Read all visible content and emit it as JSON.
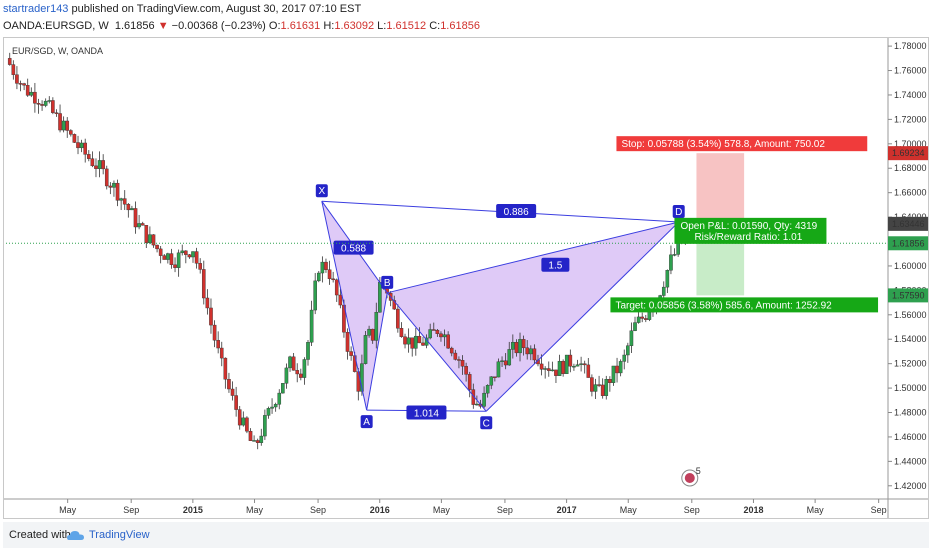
{
  "header": {
    "author": "startrader143",
    "published": "published on TradingView.com, August 30, 2017 07:10 EST",
    "symbol": "OANDA:EURSGD, W",
    "last": "1.61856",
    "arrow": "▼",
    "change": "−0.00368 (−0.23%)",
    "o_label": "O:",
    "o_val": "1.61631",
    "h_label": "H:",
    "h_val": "1.63092",
    "l_label": "L:",
    "l_val": "1.61512",
    "c_label": "C:",
    "c_val": "1.61856"
  },
  "footer": {
    "created_with": "Created with",
    "brand": "TradingView"
  },
  "colors": {
    "up": "#2ea04f",
    "down": "#d0312d",
    "pattern_line": "#3b3ee0",
    "pattern_fill": "#c9a6f2",
    "stop_zone": "#f7c3c3",
    "target_zone": "#c8ecc8",
    "stop_label": "#f03b3b",
    "target_label": "#16a816",
    "point_label": "#2424c8"
  },
  "chart_data": {
    "type": "candlestick",
    "title": "EUR/SGD, W, OANDA",
    "ylim": [
      1.41,
      1.785
    ],
    "y_ticks": [
      "1.78000",
      "1.76000",
      "1.74000",
      "1.72000",
      "1.70000",
      "1.68000",
      "1.66000",
      "1.64000",
      "1.62000",
      "1.60000",
      "1.58000",
      "1.56000",
      "1.54000",
      "1.52000",
      "1.50000",
      "1.48000",
      "1.46000",
      "1.44000",
      "1.42000"
    ],
    "x_ticks": [
      {
        "label": "May",
        "t": 2014.33,
        "bold": false
      },
      {
        "label": "Sep",
        "t": 2014.67,
        "bold": false
      },
      {
        "label": "2015",
        "t": 2015.0,
        "bold": true
      },
      {
        "label": "May",
        "t": 2015.33,
        "bold": false
      },
      {
        "label": "Sep",
        "t": 2015.67,
        "bold": false
      },
      {
        "label": "2016",
        "t": 2016.0,
        "bold": true
      },
      {
        "label": "May",
        "t": 2016.33,
        "bold": false
      },
      {
        "label": "Sep",
        "t": 2016.67,
        "bold": false
      },
      {
        "label": "2017",
        "t": 2017.0,
        "bold": true
      },
      {
        "label": "May",
        "t": 2017.33,
        "bold": false
      },
      {
        "label": "Sep",
        "t": 2017.67,
        "bold": false
      },
      {
        "label": "2018",
        "t": 2018.0,
        "bold": true
      },
      {
        "label": "May",
        "t": 2018.33,
        "bold": false
      },
      {
        "label": "Sep",
        "t": 2018.67,
        "bold": false
      }
    ],
    "xlim": [
      2014.0,
      2018.72
    ],
    "price_path": [
      [
        2014.02,
        1.765
      ],
      [
        2014.1,
        1.745
      ],
      [
        2014.2,
        1.735
      ],
      [
        2014.3,
        1.715
      ],
      [
        2014.4,
        1.695
      ],
      [
        2014.5,
        1.68
      ],
      [
        2014.6,
        1.66
      ],
      [
        2014.7,
        1.635
      ],
      [
        2014.8,
        1.615
      ],
      [
        2014.9,
        1.605
      ],
      [
        2015.0,
        1.615
      ],
      [
        2015.05,
        1.585
      ],
      [
        2015.1,
        1.55
      ],
      [
        2015.15,
        1.52
      ],
      [
        2015.2,
        1.495
      ],
      [
        2015.28,
        1.465
      ],
      [
        2015.33,
        1.45
      ],
      [
        2015.38,
        1.47
      ],
      [
        2015.45,
        1.495
      ],
      [
        2015.52,
        1.52
      ],
      [
        2015.58,
        1.515
      ],
      [
        2015.62,
        1.54
      ],
      [
        2015.67,
        1.6
      ],
      [
        2015.72,
        1.6
      ],
      [
        2015.77,
        1.575
      ],
      [
        2015.82,
        1.54
      ],
      [
        2015.86,
        1.515
      ],
      [
        2015.89,
        1.5
      ],
      [
        2015.93,
        1.545
      ],
      [
        2015.96,
        1.54
      ],
      [
        2016.0,
        1.585
      ],
      [
        2016.03,
        1.585
      ],
      [
        2016.07,
        1.565
      ],
      [
        2016.1,
        1.555
      ],
      [
        2016.14,
        1.54
      ],
      [
        2016.2,
        1.535
      ],
      [
        2016.26,
        1.54
      ],
      [
        2016.32,
        1.55
      ],
      [
        2016.38,
        1.535
      ],
      [
        2016.44,
        1.52
      ],
      [
        2016.5,
        1.49
      ],
      [
        2016.54,
        1.485
      ],
      [
        2016.58,
        1.5
      ],
      [
        2016.64,
        1.52
      ],
      [
        2016.7,
        1.53
      ],
      [
        2016.76,
        1.535
      ],
      [
        2016.82,
        1.53
      ],
      [
        2016.88,
        1.52
      ],
      [
        2016.94,
        1.515
      ],
      [
        2017.0,
        1.52
      ],
      [
        2017.06,
        1.525
      ],
      [
        2017.12,
        1.505
      ],
      [
        2017.18,
        1.495
      ],
      [
        2017.24,
        1.51
      ],
      [
        2017.3,
        1.52
      ],
      [
        2017.36,
        1.55
      ],
      [
        2017.42,
        1.56
      ],
      [
        2017.5,
        1.58
      ],
      [
        2017.56,
        1.605
      ],
      [
        2017.62,
        1.62
      ]
    ],
    "harmonic_pattern": {
      "points": [
        {
          "label": "X",
          "t": 2015.69,
          "price": 1.653
        },
        {
          "label": "A",
          "t": 2015.93,
          "price": 1.482
        },
        {
          "label": "B",
          "t": 2016.04,
          "price": 1.578
        },
        {
          "label": "C",
          "t": 2016.57,
          "price": 1.481
        },
        {
          "label": "D",
          "t": 2017.6,
          "price": 1.636
        }
      ],
      "ratios": [
        {
          "label": "0.588",
          "t": 2015.86,
          "price": 1.615
        },
        {
          "label": "0.886",
          "t": 2016.73,
          "price": 1.645
        },
        {
          "label": "1.5",
          "t": 2016.94,
          "price": 1.601
        },
        {
          "label": "1.014",
          "t": 2016.25,
          "price": 1.48
        }
      ]
    },
    "position": {
      "entry": 1.63446,
      "stop": 1.69234,
      "target": 1.5759,
      "last": 1.61856,
      "t_start": 2017.62,
      "t_end": 2017.95,
      "stop_text": "Stop: 0.05788 (3.54%) 578.8, Amount: 750.02",
      "target_text": "Target: 0.05856 (3.58%) 585.6, Amount: 1252.92",
      "open_pl_text": "Open P&L: 0.01590, Qty: 4319",
      "rr_text": "Risk/Reward Ratio: 1.01",
      "price_labels": [
        "1.69234",
        "1.63446",
        "1.61856",
        "1.57590"
      ]
    },
    "event_badge": "5"
  }
}
